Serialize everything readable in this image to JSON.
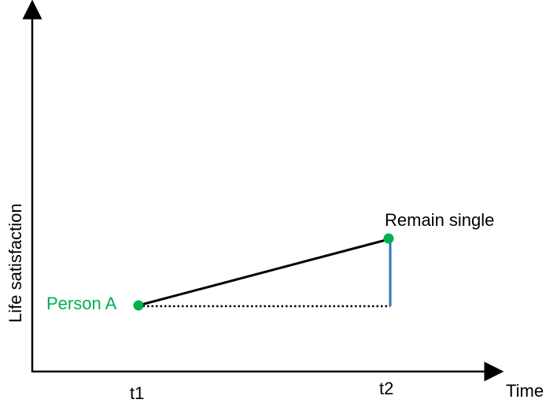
{
  "axes": {
    "y_label": "Life satisfaction",
    "x_label": "Time",
    "x_ticks": [
      "t1",
      "t2"
    ]
  },
  "points": {
    "start_label": "Person A",
    "end_label": "Remain single"
  },
  "colors": {
    "point": "#00b050",
    "trend_line": "#000000",
    "baseline": "#000000",
    "difference_line": "#2e75b6",
    "axis": "#000000"
  }
}
